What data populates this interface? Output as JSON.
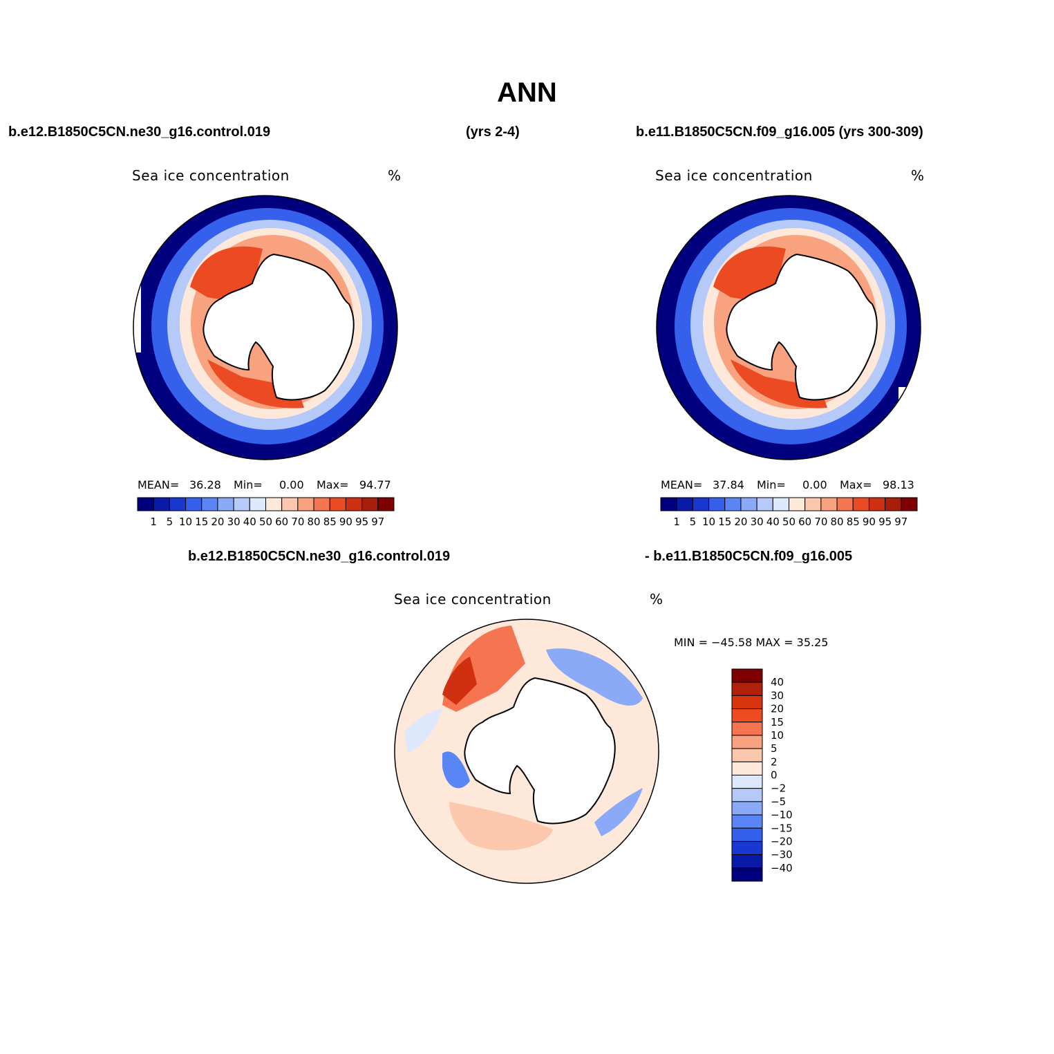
{
  "figure": {
    "title": "ANN",
    "header_left": "b.e12.B1850C5CN.ne30_g16.control.019",
    "header_mid": "(yrs 2-4)",
    "header_right": "b.e11.B1850C5CN.f09_g16.005 (yrs 300-309)",
    "diff_header_left": "b.e12.B1850C5CN.ne30_g16.control.019",
    "diff_header_right": "- b.e11.B1850C5CN.f09_g16.005"
  },
  "panels": [
    {
      "id": "case1",
      "variable": "Sea ice concentration",
      "units": "%",
      "mean_label": "MEAN=",
      "mean": "36.28",
      "min_label": "Min=",
      "min": "0.00",
      "max_label": "Max=",
      "max": "94.77"
    },
    {
      "id": "case2",
      "variable": "Sea ice concentration",
      "units": "%",
      "mean_label": "MEAN=",
      "mean": "37.84",
      "min_label": "Min=",
      "min": "0.00",
      "max_label": "Max=",
      "max": "98.13"
    },
    {
      "id": "difference",
      "variable": "Sea ice concentration",
      "units": "%",
      "minmax_text": "MIN = −45.58  MAX =   35.25"
    }
  ],
  "colorbars": {
    "concentration": {
      "levels": [
        "1",
        "5",
        "10",
        "15",
        "20",
        "30",
        "40",
        "50",
        "60",
        "70",
        "80",
        "85",
        "90",
        "95",
        "97"
      ],
      "colors": [
        "#00007f",
        "#0a1aa8",
        "#1838d0",
        "#3560ec",
        "#5a86f5",
        "#8aaaf8",
        "#b6cafa",
        "#dde8fc",
        "#fde8da",
        "#fbc8ae",
        "#f8a27f",
        "#f4754f",
        "#eb4a22",
        "#d0300f",
        "#a91e0a",
        "#7f0000"
      ]
    },
    "difference": {
      "levels": [
        "40",
        "30",
        "20",
        "15",
        "10",
        "5",
        "2",
        "0",
        "−2",
        "−5",
        "−10",
        "−15",
        "−20",
        "−30",
        "−40"
      ],
      "colors": [
        "#7f0000",
        "#b0200a",
        "#d8340e",
        "#ee4c20",
        "#f4754f",
        "#f8a27f",
        "#fbc8ae",
        "#fde8da",
        "#dde8fc",
        "#b6cafa",
        "#8aaaf8",
        "#5a86f5",
        "#3560ec",
        "#1838d0",
        "#0a1aa8",
        "#00007f"
      ]
    }
  },
  "map": {
    "projection": "south polar stereographic",
    "continent": "Antarctica",
    "ice_colors": {
      "edge": "#00007f",
      "mid_blue": "#3560ec",
      "light_blue": "#b6cafa",
      "pale": "#fde8da",
      "salmon": "#f8a27f",
      "red": "#eb4a22",
      "dark_red": "#d0300f"
    }
  }
}
